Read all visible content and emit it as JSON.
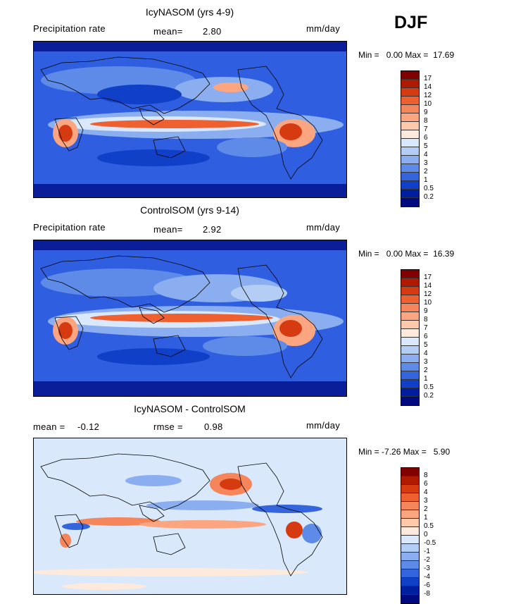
{
  "season": "DJF",
  "panels": [
    {
      "title": "IcyNASOM (yrs 4-9)",
      "variable": "Precipitation rate",
      "stat1_label": "mean=",
      "stat1_value": "2.80",
      "units": "mm/day",
      "min_label": "Min =",
      "min_value": "0.00",
      "max_label": "Max =",
      "max_value": "17.69",
      "colorbar_ticks": [
        "17",
        "14",
        "12",
        "10",
        "9",
        "8",
        "7",
        "6",
        "5",
        "4",
        "3",
        "2",
        "1",
        "0.5",
        "0.2"
      ]
    },
    {
      "title": "ControlSOM (yrs 9-14)",
      "variable": "Precipitation rate",
      "stat1_label": "mean=",
      "stat1_value": "2.92",
      "units": "mm/day",
      "min_label": "Min =",
      "min_value": "0.00",
      "max_label": "Max =",
      "max_value": "16.39",
      "colorbar_ticks": [
        "17",
        "14",
        "12",
        "10",
        "9",
        "8",
        "7",
        "6",
        "5",
        "4",
        "3",
        "2",
        "1",
        "0.5",
        "0.2"
      ]
    },
    {
      "title": "IcyNASOM - ControlSOM",
      "stat1_label": "mean =",
      "stat1_value": "-0.12",
      "stat2_label": "rmse =",
      "stat2_value": "0.98",
      "units": "mm/day",
      "min_label": "Min =",
      "min_value": "-7.26",
      "max_label": "Max =",
      "max_value": "5.90",
      "colorbar_ticks": [
        "8",
        "6",
        "4",
        "3",
        "2",
        "1",
        "0.5",
        "0",
        "-0.5",
        "-1",
        "-2",
        "-3",
        "-4",
        "-6",
        "-8"
      ]
    }
  ],
  "colors": {
    "precip_scale": [
      "#800000",
      "#b01a00",
      "#d63a10",
      "#ee6030",
      "#f5855a",
      "#fba680",
      "#fdc9aa",
      "#fdeadd",
      "#d9e8fb",
      "#b3cdf5",
      "#8aaef0",
      "#5e8ae8",
      "#3565dc",
      "#1040c8",
      "#001ea0",
      "#000a80"
    ],
    "diff_scale": [
      "#800000",
      "#b01a00",
      "#d63a10",
      "#ee6030",
      "#f5855a",
      "#fba680",
      "#fdc9aa",
      "#fdeadd",
      "#d9e8fb",
      "#b3cdf5",
      "#8aaef0",
      "#5e8ae8",
      "#3565dc",
      "#1040c8",
      "#001ea0",
      "#000a80"
    ]
  }
}
